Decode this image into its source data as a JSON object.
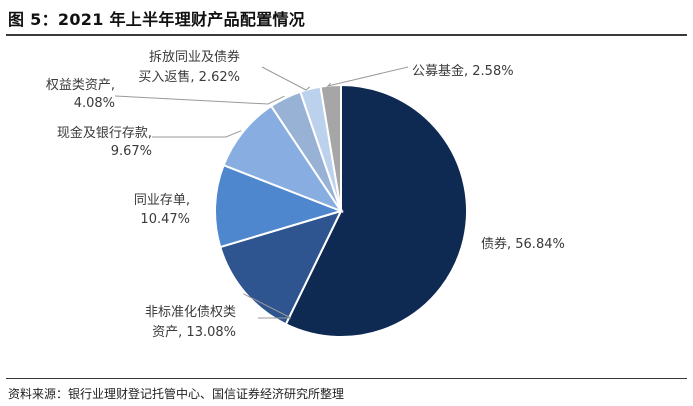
{
  "title": "图 5：2021 年上半年理财产品配置情况",
  "source": "资料来源：银行业理财登记托管中心、国信证券经济研究所整理",
  "chart_data": {
    "type": "pie",
    "slices": [
      {
        "name": "债券",
        "value": 56.84,
        "value_label": "56.84%",
        "color": "#0e2a52"
      },
      {
        "name": "非标准化债权类资产",
        "value": 13.08,
        "value_label": "13.08%",
        "color": "#2e5590"
      },
      {
        "name": "同业存单",
        "value": 10.47,
        "value_label": "10.47%",
        "color": "#4f87cf"
      },
      {
        "name": "现金及银行存款",
        "value": 9.67,
        "value_label": "9.67%",
        "color": "#88ade0"
      },
      {
        "name": "权益类资产",
        "value": 4.08,
        "value_label": "4.08%",
        "color": "#98b2d6"
      },
      {
        "name": "拆放同业及债券买入返售",
        "value": 2.62,
        "value_label": "2.62%",
        "color": "#bcd2ec"
      },
      {
        "name": "公募基金",
        "value": 2.58,
        "value_label": "2.58%",
        "color": "#a6a6a6"
      }
    ],
    "labels": [
      {
        "lines": [
          "债券, 56.84%"
        ]
      },
      {
        "lines": [
          "非标准化债权类",
          "资产, 13.08%"
        ]
      },
      {
        "lines": [
          "同业存单,",
          "10.47%"
        ]
      },
      {
        "lines": [
          "现金及银行存款,",
          "9.67%"
        ]
      },
      {
        "lines": [
          "权益类资产,",
          "4.08%"
        ]
      },
      {
        "lines": [
          "拆放同业及债券",
          "买入返售, 2.62%"
        ]
      },
      {
        "lines": [
          "公募基金, 2.58%"
        ]
      }
    ]
  }
}
